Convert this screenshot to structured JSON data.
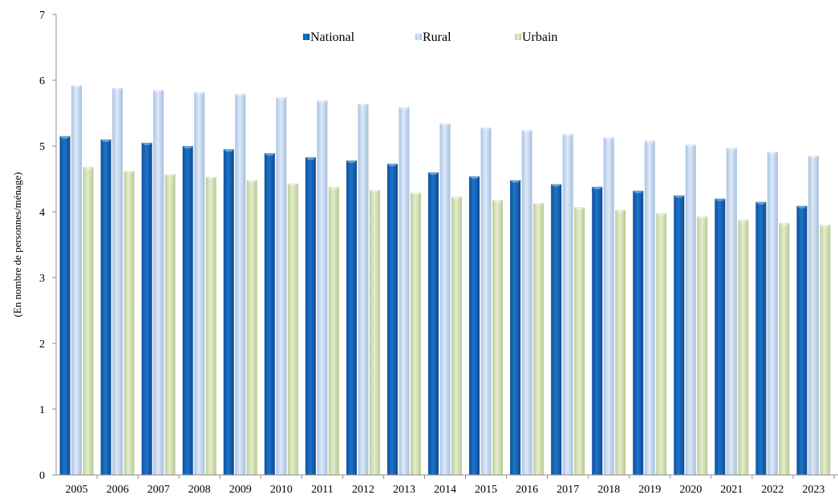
{
  "chart_data": {
    "type": "bar",
    "title": "",
    "xlabel": "",
    "ylabel": "(En nombre de personnes/ménage)",
    "ylim": [
      0,
      7
    ],
    "yticks": [
      0,
      1,
      2,
      3,
      4,
      5,
      6,
      7
    ],
    "grid": false,
    "legend_position": "top-center",
    "categories": [
      "2005",
      "2006",
      "2007",
      "2008",
      "2009",
      "2010",
      "2011",
      "2012",
      "2013",
      "2014",
      "2015",
      "2016",
      "2017",
      "2018",
      "2019",
      "2020",
      "2021",
      "2022",
      "2023"
    ],
    "series": [
      {
        "name": "National",
        "color": "#1565c0",
        "values": [
          5.15,
          5.1,
          5.05,
          5.0,
          4.95,
          4.89,
          4.83,
          4.78,
          4.73,
          4.6,
          4.54,
          4.48,
          4.42,
          4.38,
          4.32,
          4.25,
          4.2,
          4.15,
          4.09
        ]
      },
      {
        "name": "Rural",
        "color": "#c6d9f0",
        "values": [
          5.92,
          5.88,
          5.85,
          5.82,
          5.79,
          5.74,
          5.69,
          5.64,
          5.59,
          5.34,
          5.28,
          5.24,
          5.18,
          5.13,
          5.08,
          5.02,
          4.97,
          4.91,
          4.85
        ]
      },
      {
        "name": "Urbain",
        "color": "#d7e4bd",
        "values": [
          4.68,
          4.62,
          4.57,
          4.53,
          4.48,
          4.43,
          4.38,
          4.33,
          4.29,
          4.23,
          4.18,
          4.13,
          4.07,
          4.03,
          3.98,
          3.93,
          3.88,
          3.83,
          3.8
        ]
      }
    ]
  }
}
